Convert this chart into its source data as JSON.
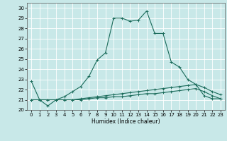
{
  "xlabel": "Humidex (Indice chaleur)",
  "background_color": "#c8e8e8",
  "grid_color": "#ffffff",
  "line_color": "#1a6b5a",
  "xlim": [
    -0.5,
    23.5
  ],
  "ylim": [
    20,
    30.5
  ],
  "xticks": [
    0,
    1,
    2,
    3,
    4,
    5,
    6,
    7,
    8,
    9,
    10,
    11,
    12,
    13,
    14,
    15,
    16,
    17,
    18,
    19,
    20,
    21,
    22,
    23
  ],
  "yticks": [
    20,
    21,
    22,
    23,
    24,
    25,
    26,
    27,
    28,
    29,
    30
  ],
  "curve1_x": [
    0,
    1,
    2,
    3,
    4,
    5,
    6,
    7,
    8,
    9,
    10,
    11,
    12,
    13,
    14,
    15,
    16,
    17,
    18,
    19,
    20,
    21,
    22,
    23
  ],
  "curve1_y": [
    22.8,
    21.0,
    20.4,
    21.0,
    21.3,
    21.8,
    22.3,
    23.3,
    24.9,
    25.6,
    29.0,
    29.0,
    28.7,
    28.8,
    29.7,
    27.5,
    27.5,
    24.7,
    24.2,
    23.0,
    22.5,
    21.4,
    21.1,
    21.1
  ],
  "curve2_x": [
    0,
    1,
    2,
    3,
    4,
    5,
    6,
    7,
    8,
    9,
    10,
    11,
    12,
    13,
    14,
    15,
    16,
    17,
    18,
    19,
    20,
    21,
    22,
    23
  ],
  "curve2_y": [
    21.0,
    21.0,
    21.0,
    21.0,
    21.0,
    21.0,
    21.1,
    21.2,
    21.3,
    21.4,
    21.5,
    21.6,
    21.7,
    21.8,
    21.9,
    22.0,
    22.1,
    22.2,
    22.3,
    22.4,
    22.5,
    22.2,
    21.8,
    21.5
  ],
  "curve3_x": [
    0,
    1,
    2,
    3,
    4,
    5,
    6,
    7,
    8,
    9,
    10,
    11,
    12,
    13,
    14,
    15,
    16,
    17,
    18,
    19,
    20,
    21,
    22,
    23
  ],
  "curve3_y": [
    21.0,
    21.0,
    21.0,
    21.0,
    21.0,
    21.0,
    21.0,
    21.1,
    21.2,
    21.2,
    21.3,
    21.3,
    21.4,
    21.5,
    21.6,
    21.6,
    21.7,
    21.8,
    21.9,
    22.0,
    22.1,
    21.8,
    21.4,
    21.1
  ]
}
